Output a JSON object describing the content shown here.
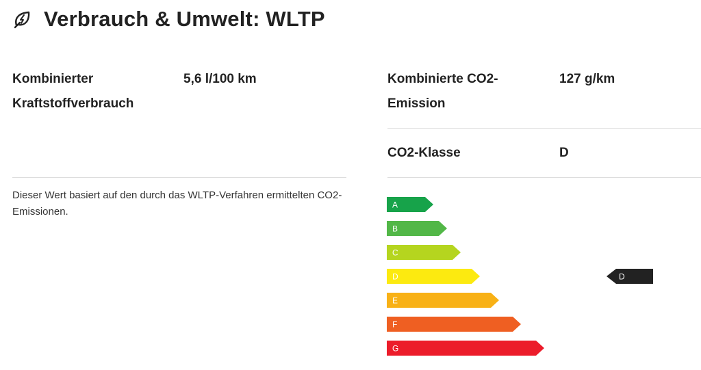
{
  "header": {
    "title": "Verbrauch & Umwelt: WLTP",
    "icon": "eco-leaf-icon"
  },
  "consumption": {
    "label_line1": "Kombinierter",
    "label_line2": "Kraftstoffverbrauch",
    "value": "5,6 l/100 km"
  },
  "emission": {
    "label_line1": "Kombinierte CO2-",
    "label_line2": "Emission",
    "value": "127 g/km"
  },
  "co2_class": {
    "label": "CO2-Klasse",
    "value": "D"
  },
  "note": "Dieser Wert basiert auf den durch das WLTP-Verfahren ermittelten CO2-Emissionen.",
  "efficiency_scale": {
    "classes": [
      {
        "letter": "A",
        "color": "#17a34a"
      },
      {
        "letter": "B",
        "color": "#52b747"
      },
      {
        "letter": "C",
        "color": "#b5d51f"
      },
      {
        "letter": "D",
        "color": "#fcea10"
      },
      {
        "letter": "E",
        "color": "#f8b116"
      },
      {
        "letter": "F",
        "color": "#ef5f22"
      },
      {
        "letter": "G",
        "color": "#ec1c2a"
      }
    ],
    "current": "D",
    "indicator_color": "#222222"
  }
}
